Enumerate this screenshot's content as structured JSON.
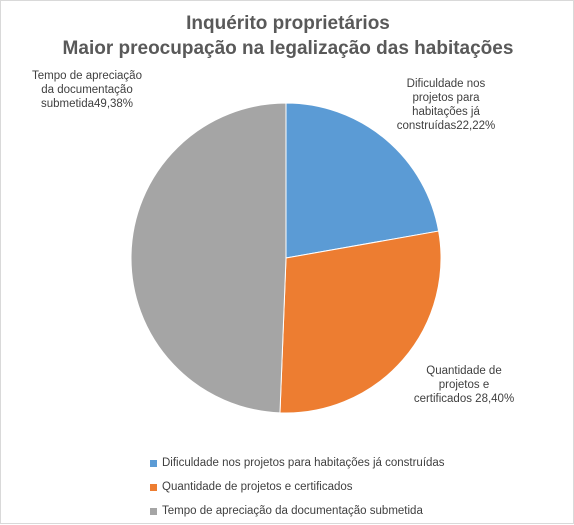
{
  "chart_data": {
    "type": "pie",
    "title": "Inquérito proprietários",
    "subtitle": "Maior preocupação na legalização das habitações",
    "categories": [
      "Dificuldade nos projetos para habitações já construídas",
      "Quantidade de projetos e certificados",
      "Tempo de apreciação da documentação submetida"
    ],
    "values": [
      22.22,
      28.4,
      49.38
    ],
    "unit": "%",
    "colors": [
      "#5b9bd5",
      "#ed7d31",
      "#a5a5a5"
    ],
    "data_labels": [
      [
        "Dificuldade nos",
        "projetos para",
        "habitações já",
        "construídas22,22%"
      ],
      [
        "Quantidade de",
        "projetos e",
        "certificados 28,40%"
      ],
      [
        "Tempo de apreciação",
        "da documentação",
        "submetida49,38%"
      ]
    ],
    "legend_position": "bottom"
  }
}
